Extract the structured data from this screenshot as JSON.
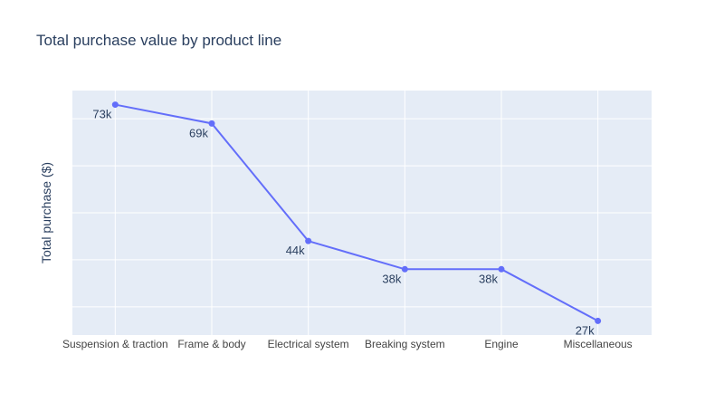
{
  "chart_data": {
    "type": "line",
    "title": "Total purchase value by product line",
    "xlabel": "",
    "ylabel": "Total purchase ($)",
    "categories": [
      "Suspension & traction",
      "Frame & body",
      "Electrical system",
      "Breaking system",
      "Engine",
      "Miscellaneous"
    ],
    "series": [
      {
        "values": [
          73000,
          69000,
          44000,
          38000,
          38000,
          27000
        ],
        "labels": [
          "73k",
          "69k",
          "44k",
          "38k",
          "38k",
          "27k"
        ]
      }
    ],
    "ylim": [
      24000,
      76000
    ],
    "y_grid": [
      30000,
      40000,
      50000,
      60000,
      70000
    ],
    "y_tick_labels_visible": false,
    "grid": true,
    "colors": {
      "line": "#636efa",
      "plot_bg": "#e5ecf6",
      "grid": "#ffffff",
      "text": "#2a3f5f",
      "tick_text": "#444444"
    }
  }
}
